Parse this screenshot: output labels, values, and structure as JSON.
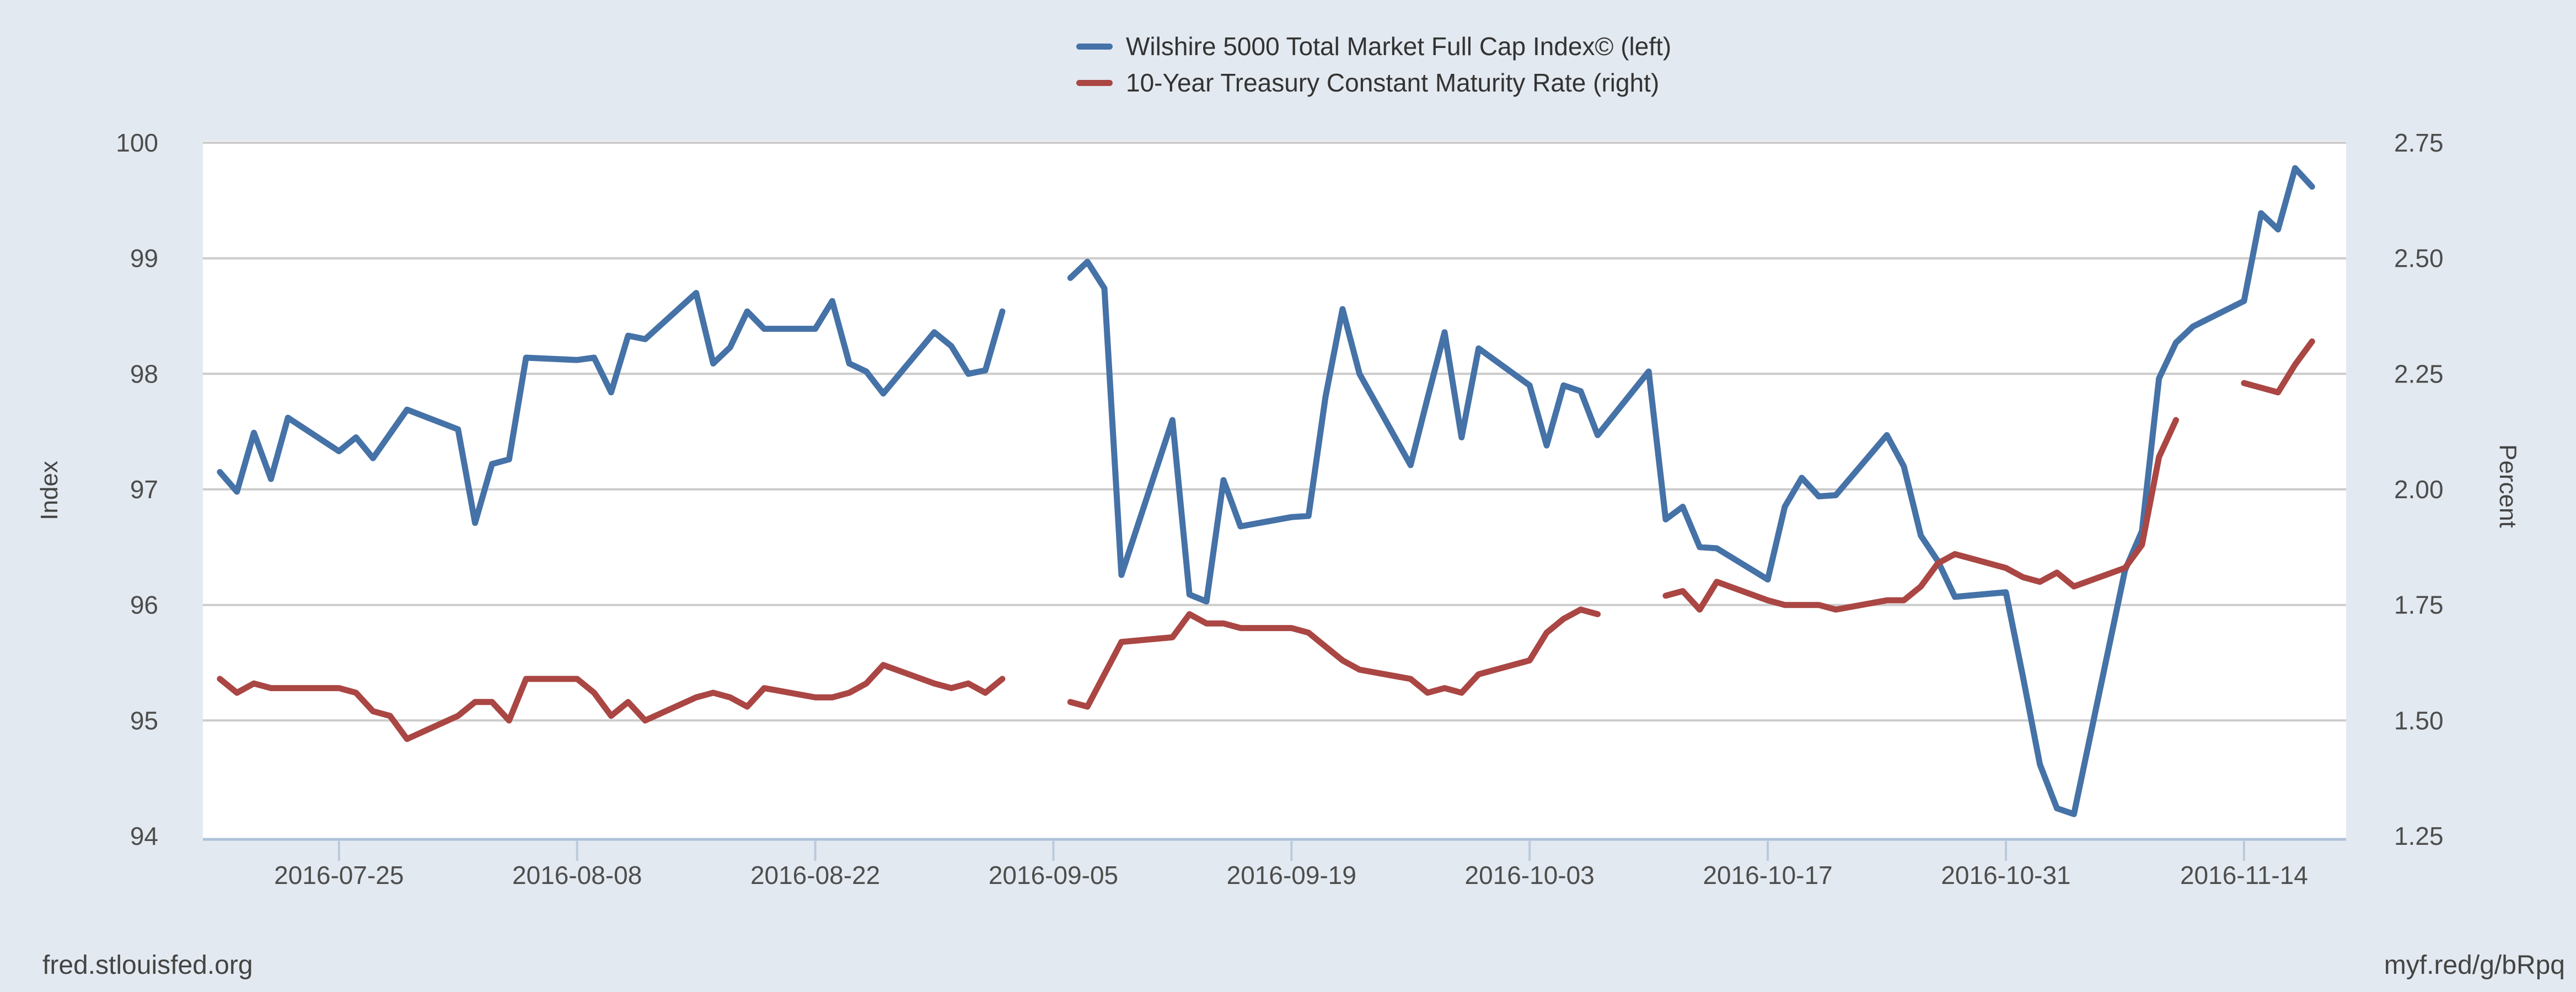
{
  "page": {
    "background_color": "#e3e9f0",
    "plot_background_color": "#ffffff",
    "gridline_color": "#cccccc",
    "axis_line_color": "#aec2d8"
  },
  "footer": {
    "left": "fred.stlouisfed.org",
    "right": "myf.red/g/bRpq"
  },
  "chart_data": {
    "type": "line",
    "title": "",
    "grid": true,
    "legend_position": "top-center",
    "x_axis": {
      "domain": [
        "2016-07-17",
        "2016-11-20"
      ],
      "tick_labels": [
        "2016-07-25",
        "2016-08-08",
        "2016-08-22",
        "2016-09-05",
        "2016-09-19",
        "2016-10-03",
        "2016-10-17",
        "2016-10-31",
        "2016-11-14"
      ]
    },
    "left_axis": {
      "label": "Index",
      "min": 94,
      "max": 100,
      "ticks": [
        100,
        99,
        98,
        97,
        96,
        95,
        94
      ]
    },
    "right_axis": {
      "label": "Percent",
      "min": 1.25,
      "max": 2.75,
      "ticks": [
        "2.75",
        "2.50",
        "2.25",
        "2.00",
        "1.75",
        "1.50",
        "1.25"
      ]
    },
    "series": [
      {
        "id": "wilshire-5000-index",
        "name": "Wilshire 5000 Total Market Full Cap Index© (left)",
        "color": "#4572a7",
        "axis": "left",
        "points": [
          [
            "2016-07-18",
            97.15
          ],
          [
            "2016-07-19",
            96.98
          ],
          [
            "2016-07-20",
            97.49
          ],
          [
            "2016-07-21",
            97.09
          ],
          [
            "2016-07-22",
            97.62
          ],
          [
            "2016-07-25",
            97.33
          ],
          [
            "2016-07-26",
            97.45
          ],
          [
            "2016-07-27",
            97.27
          ],
          [
            "2016-07-28",
            97.48
          ],
          [
            "2016-07-29",
            97.69
          ],
          [
            "2016-08-01",
            97.52
          ],
          [
            "2016-08-02",
            96.71
          ],
          [
            "2016-08-03",
            97.22
          ],
          [
            "2016-08-04",
            97.26
          ],
          [
            "2016-08-05",
            98.14
          ],
          [
            "2016-08-08",
            98.12
          ],
          [
            "2016-08-09",
            98.14
          ],
          [
            "2016-08-10",
            97.84
          ],
          [
            "2016-08-11",
            98.33
          ],
          [
            "2016-08-12",
            98.3
          ],
          [
            "2016-08-15",
            98.7
          ],
          [
            "2016-08-16",
            98.09
          ],
          [
            "2016-08-17",
            98.23
          ],
          [
            "2016-08-18",
            98.54
          ],
          [
            "2016-08-19",
            98.39
          ],
          [
            "2016-08-22",
            98.39
          ],
          [
            "2016-08-23",
            98.63
          ],
          [
            "2016-08-24",
            98.09
          ],
          [
            "2016-08-25",
            98.02
          ],
          [
            "2016-08-26",
            97.83
          ],
          [
            "2016-08-29",
            98.36
          ],
          [
            "2016-08-30",
            98.24
          ],
          [
            "2016-08-31",
            98.0
          ],
          [
            "2016-09-01",
            98.03
          ],
          [
            "2016-09-02",
            98.54
          ],
          [
            "2016-09-06",
            98.83
          ],
          [
            "2016-09-07",
            98.97
          ],
          [
            "2016-09-08",
            98.74
          ],
          [
            "2016-09-09",
            96.26
          ],
          [
            "2016-09-12",
            97.6
          ],
          [
            "2016-09-13",
            96.09
          ],
          [
            "2016-09-14",
            96.03
          ],
          [
            "2016-09-15",
            97.08
          ],
          [
            "2016-09-16",
            96.68
          ],
          [
            "2016-09-19",
            96.76
          ],
          [
            "2016-09-20",
            96.77
          ],
          [
            "2016-09-21",
            97.8
          ],
          [
            "2016-09-22",
            98.56
          ],
          [
            "2016-09-23",
            98.0
          ],
          [
            "2016-09-26",
            97.21
          ],
          [
            "2016-09-27",
            97.79
          ],
          [
            "2016-09-28",
            98.36
          ],
          [
            "2016-09-29",
            97.45
          ],
          [
            "2016-09-30",
            98.22
          ],
          [
            "2016-10-03",
            97.9
          ],
          [
            "2016-10-04",
            97.38
          ],
          [
            "2016-10-05",
            97.9
          ],
          [
            "2016-10-06",
            97.85
          ],
          [
            "2016-10-07",
            97.47
          ],
          [
            "2016-10-10",
            98.02
          ],
          [
            "2016-10-11",
            96.74
          ],
          [
            "2016-10-12",
            96.85
          ],
          [
            "2016-10-13",
            96.5
          ],
          [
            "2016-10-14",
            96.49
          ],
          [
            "2016-10-17",
            96.22
          ],
          [
            "2016-10-18",
            96.85
          ],
          [
            "2016-10-19",
            97.1
          ],
          [
            "2016-10-20",
            96.94
          ],
          [
            "2016-10-21",
            96.95
          ],
          [
            "2016-10-24",
            97.47
          ],
          [
            "2016-10-25",
            97.2
          ],
          [
            "2016-10-26",
            96.6
          ],
          [
            "2016-10-27",
            96.38
          ],
          [
            "2016-10-28",
            96.07
          ],
          [
            "2016-10-31",
            96.11
          ],
          [
            "2016-11-01",
            95.38
          ],
          [
            "2016-11-02",
            94.62
          ],
          [
            "2016-11-03",
            94.24
          ],
          [
            "2016-11-04",
            94.19
          ],
          [
            "2016-11-07",
            96.3
          ],
          [
            "2016-11-08",
            96.64
          ],
          [
            "2016-11-09",
            97.96
          ],
          [
            "2016-11-10",
            98.27
          ],
          [
            "2016-11-11",
            98.41
          ],
          [
            "2016-11-14",
            98.63
          ],
          [
            "2016-11-15",
            99.39
          ],
          [
            "2016-11-16",
            99.25
          ],
          [
            "2016-11-17",
            99.78
          ],
          [
            "2016-11-18",
            99.62
          ]
        ]
      },
      {
        "id": "10-year-treasury-rate",
        "name": "10-Year Treasury Constant Maturity Rate (right)",
        "color": "#aa4643",
        "axis": "right",
        "points": [
          [
            "2016-07-18",
            1.59
          ],
          [
            "2016-07-19",
            1.56
          ],
          [
            "2016-07-20",
            1.58
          ],
          [
            "2016-07-21",
            1.57
          ],
          [
            "2016-07-22",
            1.57
          ],
          [
            "2016-07-25",
            1.57
          ],
          [
            "2016-07-26",
            1.56
          ],
          [
            "2016-07-27",
            1.52
          ],
          [
            "2016-07-28",
            1.51
          ],
          [
            "2016-07-29",
            1.46
          ],
          [
            "2016-08-01",
            1.51
          ],
          [
            "2016-08-02",
            1.54
          ],
          [
            "2016-08-03",
            1.54
          ],
          [
            "2016-08-04",
            1.5
          ],
          [
            "2016-08-05",
            1.59
          ],
          [
            "2016-08-08",
            1.59
          ],
          [
            "2016-08-09",
            1.56
          ],
          [
            "2016-08-10",
            1.51
          ],
          [
            "2016-08-11",
            1.54
          ],
          [
            "2016-08-12",
            1.5
          ],
          [
            "2016-08-15",
            1.55
          ],
          [
            "2016-08-16",
            1.56
          ],
          [
            "2016-08-17",
            1.55
          ],
          [
            "2016-08-18",
            1.53
          ],
          [
            "2016-08-19",
            1.57
          ],
          [
            "2016-08-22",
            1.55
          ],
          [
            "2016-08-23",
            1.55
          ],
          [
            "2016-08-24",
            1.56
          ],
          [
            "2016-08-25",
            1.58
          ],
          [
            "2016-08-26",
            1.62
          ],
          [
            "2016-08-29",
            1.58
          ],
          [
            "2016-08-30",
            1.57
          ],
          [
            "2016-08-31",
            1.58
          ],
          [
            "2016-09-01",
            1.56
          ],
          [
            "2016-09-02",
            1.59
          ],
          [
            "2016-09-06",
            1.54
          ],
          [
            "2016-09-07",
            1.53
          ],
          [
            "2016-09-08",
            1.6
          ],
          [
            "2016-09-09",
            1.67
          ],
          [
            "2016-09-12",
            1.68
          ],
          [
            "2016-09-13",
            1.73
          ],
          [
            "2016-09-14",
            1.71
          ],
          [
            "2016-09-15",
            1.71
          ],
          [
            "2016-09-16",
            1.7
          ],
          [
            "2016-09-19",
            1.7
          ],
          [
            "2016-09-20",
            1.69
          ],
          [
            "2016-09-21",
            1.66
          ],
          [
            "2016-09-22",
            1.63
          ],
          [
            "2016-09-23",
            1.61
          ],
          [
            "2016-09-26",
            1.59
          ],
          [
            "2016-09-27",
            1.56
          ],
          [
            "2016-09-28",
            1.57
          ],
          [
            "2016-09-29",
            1.56
          ],
          [
            "2016-09-30",
            1.6
          ],
          [
            "2016-10-03",
            1.63
          ],
          [
            "2016-10-04",
            1.69
          ],
          [
            "2016-10-05",
            1.72
          ],
          [
            "2016-10-06",
            1.74
          ],
          [
            "2016-10-07",
            1.73
          ],
          [
            "2016-10-11",
            1.77
          ],
          [
            "2016-10-12",
            1.78
          ],
          [
            "2016-10-13",
            1.74
          ],
          [
            "2016-10-14",
            1.8
          ],
          [
            "2016-10-17",
            1.76
          ],
          [
            "2016-10-18",
            1.75
          ],
          [
            "2016-10-19",
            1.75
          ],
          [
            "2016-10-20",
            1.75
          ],
          [
            "2016-10-21",
            1.74
          ],
          [
            "2016-10-24",
            1.76
          ],
          [
            "2016-10-25",
            1.76
          ],
          [
            "2016-10-26",
            1.79
          ],
          [
            "2016-10-27",
            1.84
          ],
          [
            "2016-10-28",
            1.86
          ],
          [
            "2016-10-31",
            1.83
          ],
          [
            "2016-11-01",
            1.81
          ],
          [
            "2016-11-02",
            1.8
          ],
          [
            "2016-11-03",
            1.82
          ],
          [
            "2016-11-04",
            1.79
          ],
          [
            "2016-11-07",
            1.83
          ],
          [
            "2016-11-08",
            1.88
          ],
          [
            "2016-11-09",
            2.07
          ],
          [
            "2016-11-10",
            2.15
          ],
          [
            "2016-11-14",
            2.23
          ],
          [
            "2016-11-15",
            2.22
          ],
          [
            "2016-11-16",
            2.21
          ],
          [
            "2016-11-17",
            2.27
          ],
          [
            "2016-11-18",
            2.32
          ]
        ]
      }
    ]
  }
}
